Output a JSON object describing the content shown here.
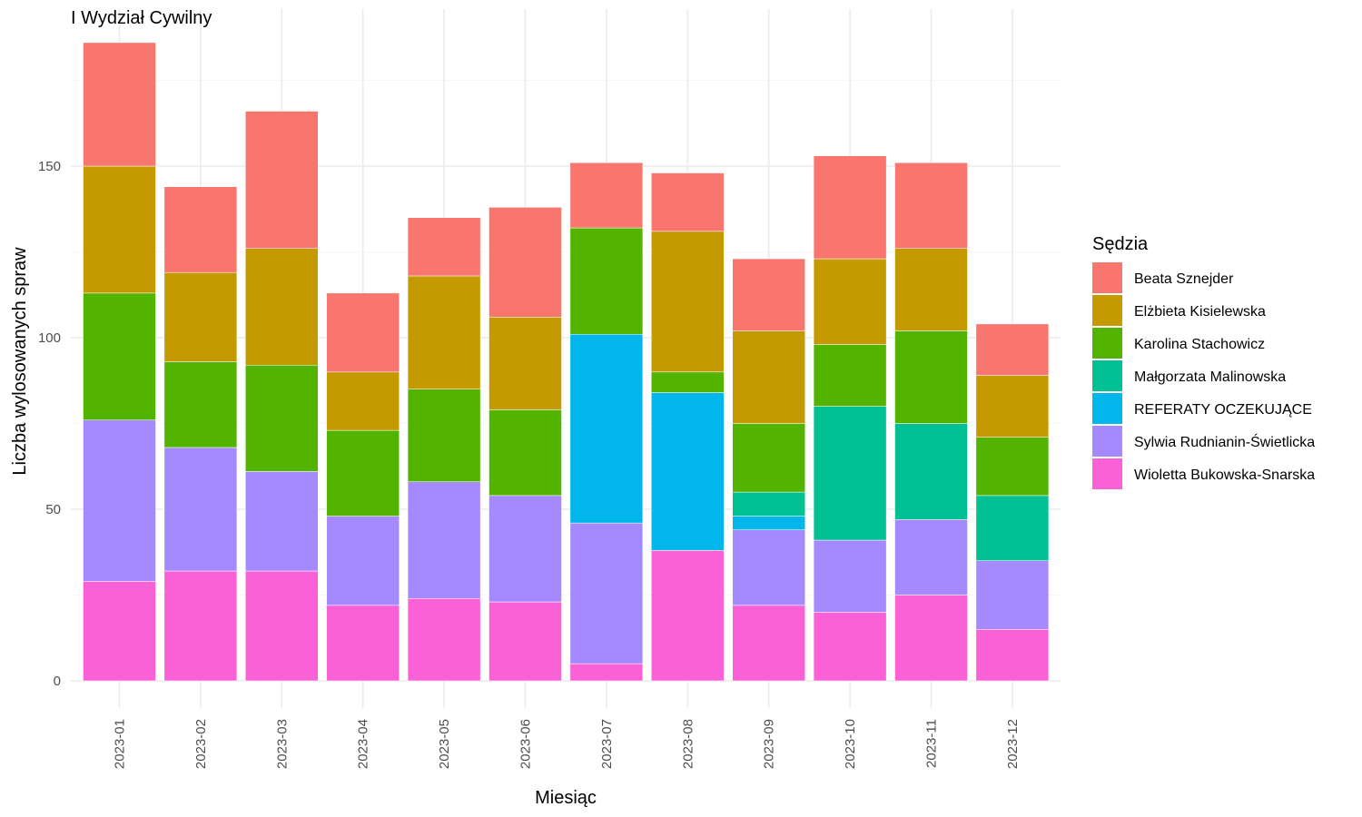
{
  "chart_data": {
    "type": "bar",
    "stacked": true,
    "title": "I Wydział Cywilny",
    "xlabel": "Miesiąc",
    "ylabel": "Liczba wylosowanych spraw",
    "ylim": [
      0,
      186
    ],
    "yticks": [
      0,
      50,
      100,
      150
    ],
    "grid": true,
    "legend_title": "Sędzia",
    "legend_position": "right",
    "categories": [
      "2023-01",
      "2023-02",
      "2023-03",
      "2023-04",
      "2023-05",
      "2023-06",
      "2023-07",
      "2023-08",
      "2023-09",
      "2023-10",
      "2023-11",
      "2023-12"
    ],
    "series": [
      {
        "name": "Wioletta Bukowska-Snarska",
        "color": "#FB61D7",
        "values": [
          29,
          32,
          32,
          22,
          24,
          23,
          5,
          38,
          22,
          20,
          25,
          15
        ]
      },
      {
        "name": "Sylwia Rudnianin-Świetlicka",
        "color": "#A58AFF",
        "values": [
          47,
          36,
          29,
          26,
          34,
          31,
          41,
          0,
          22,
          21,
          22,
          20
        ]
      },
      {
        "name": "REFERATY OCZEKUJĄCE",
        "color": "#00B6EB",
        "values": [
          0,
          0,
          0,
          0,
          0,
          0,
          55,
          46,
          4,
          0,
          0,
          0
        ]
      },
      {
        "name": "Małgorzata Malinowska",
        "color": "#00C094",
        "values": [
          0,
          0,
          0,
          0,
          0,
          0,
          0,
          0,
          7,
          39,
          28,
          19
        ]
      },
      {
        "name": "Karolina Stachowicz",
        "color": "#53B400",
        "values": [
          37,
          25,
          31,
          25,
          27,
          25,
          31,
          6,
          20,
          18,
          27,
          17
        ]
      },
      {
        "name": "Elżbieta Kisielewska",
        "color": "#C49A00",
        "values": [
          37,
          26,
          34,
          17,
          33,
          27,
          0,
          41,
          27,
          25,
          24,
          18
        ]
      },
      {
        "name": "Beata Sznejder",
        "color": "#F8766D",
        "values": [
          36,
          25,
          40,
          23,
          17,
          32,
          19,
          17,
          21,
          30,
          25,
          15
        ]
      }
    ],
    "legend_order": [
      "Beata Sznejder",
      "Elżbieta Kisielewska",
      "Karolina Stachowicz",
      "Małgorzata Malinowska",
      "REFERATY OCZEKUJĄCE",
      "Sylwia Rudnianin-Świetlicka",
      "Wioletta Bukowska-Snarska"
    ]
  }
}
